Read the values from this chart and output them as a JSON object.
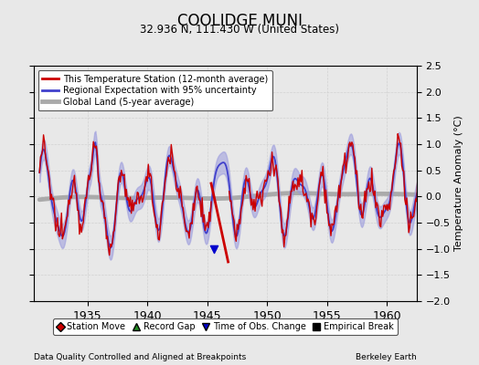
{
  "title": "COOLIDGE MUNI",
  "subtitle": "32.936 N, 111.430 W (United States)",
  "ylabel": "Temperature Anomaly (°C)",
  "footer_left": "Data Quality Controlled and Aligned at Breakpoints",
  "footer_right": "Berkeley Earth",
  "xlim": [
    1930.5,
    1962.5
  ],
  "ylim": [
    -2.0,
    2.5
  ],
  "yticks": [
    -2,
    -1.5,
    -1,
    -0.5,
    0,
    0.5,
    1,
    1.5,
    2,
    2.5
  ],
  "xticks": [
    1935,
    1940,
    1945,
    1950,
    1955,
    1960
  ],
  "regional_color": "#4040cc",
  "regional_fill": "#9999dd",
  "station_color": "#cc0000",
  "global_color": "#aaaaaa",
  "background_color": "#e8e8e8",
  "legend_label_station": "This Temperature Station (12-month average)",
  "legend_label_regional": "Regional Expectation with 95% uncertainty",
  "legend_label_global": "Global Land (5-year average)",
  "marker_legend": [
    {
      "label": "Station Move",
      "color": "#cc0000",
      "marker": "D"
    },
    {
      "label": "Record Gap",
      "color": "#228B22",
      "marker": "^"
    },
    {
      "label": "Time of Obs. Change",
      "color": "#0000cc",
      "marker": "v"
    },
    {
      "label": "Empirical Break",
      "color": "#000000",
      "marker": "s"
    }
  ],
  "time_of_obs_change_year": 1945.6
}
